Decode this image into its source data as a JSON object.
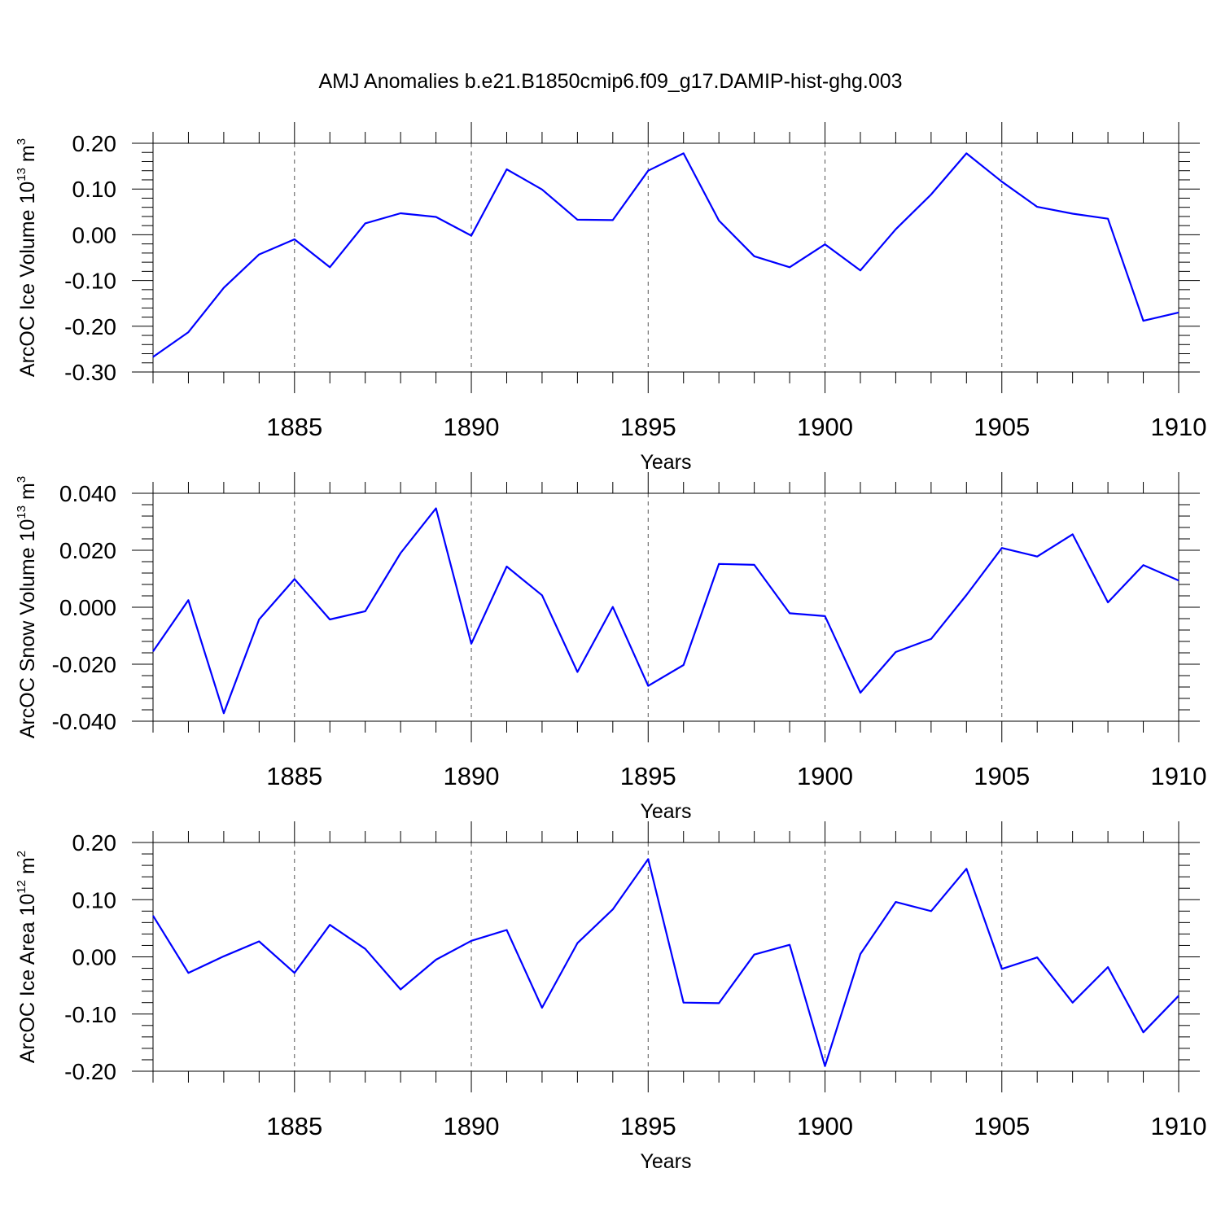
{
  "title": "AMJ Anomalies b.e21.B1850cmip6.f09_g17.DAMIP-hist-ghg.003",
  "chart_data": [
    {
      "type": "line",
      "ylabel": {
        "prefix": "ArcOC Ice Volume 10",
        "sup": "13",
        "suffix": " m",
        "sup2": "3"
      },
      "xlabel": "Years",
      "xlim": [
        1881,
        1910
      ],
      "ylim": [
        -0.3,
        0.2
      ],
      "yticks": [
        -0.3,
        -0.2,
        -0.1,
        0.0,
        0.1,
        0.2
      ],
      "ytick_labels": [
        "-0.30",
        "-0.20",
        "-0.10",
        "0.00",
        "0.10",
        "0.20"
      ],
      "xticks": [
        1885,
        1890,
        1895,
        1900,
        1905,
        1910
      ],
      "xtick_labels": [
        "1885",
        "1890",
        "1895",
        "1900",
        "1905",
        "1910"
      ],
      "grid": "vertical dashed at labeled years",
      "line_color": "#0000ff",
      "series": [
        {
          "x": [
            1881,
            1882,
            1883,
            1884,
            1885,
            1886,
            1887,
            1888,
            1889,
            1890,
            1891,
            1892,
            1893,
            1894,
            1895,
            1896,
            1897,
            1898,
            1899,
            1900,
            1901,
            1902,
            1903,
            1904,
            1905,
            1906,
            1907,
            1908,
            1909,
            1910
          ],
          "values": [
            -0.267,
            -0.213,
            -0.116,
            -0.043,
            -0.01,
            -0.071,
            0.025,
            0.047,
            0.039,
            -0.002,
            0.143,
            0.099,
            0.033,
            0.032,
            0.14,
            0.178,
            0.031,
            -0.047,
            -0.071,
            -0.021,
            -0.078,
            0.012,
            0.088,
            0.178,
            0.116,
            0.061,
            0.046,
            0.035,
            -0.188,
            -0.17
          ]
        }
      ]
    },
    {
      "type": "line",
      "ylabel": {
        "prefix": "ArcOC Snow Volume 10",
        "sup": "13",
        "suffix": " m",
        "sup2": "3"
      },
      "xlabel": "Years",
      "xlim": [
        1881,
        1910
      ],
      "ylim": [
        -0.04,
        0.04
      ],
      "yticks": [
        -0.04,
        -0.02,
        0.0,
        0.02,
        0.04
      ],
      "ytick_labels": [
        "-0.040",
        "-0.020",
        "0.000",
        "0.020",
        "0.040"
      ],
      "xticks": [
        1885,
        1890,
        1895,
        1900,
        1905,
        1910
      ],
      "xtick_labels": [
        "1885",
        "1890",
        "1895",
        "1900",
        "1905",
        "1910"
      ],
      "grid": "vertical dashed at labeled years",
      "line_color": "#0000ff",
      "series": [
        {
          "x": [
            1881,
            1882,
            1883,
            1884,
            1885,
            1886,
            1887,
            1888,
            1889,
            1890,
            1891,
            1892,
            1893,
            1894,
            1895,
            1896,
            1897,
            1898,
            1899,
            1900,
            1901,
            1902,
            1903,
            1904,
            1905,
            1906,
            1907,
            1908,
            1909,
            1910
          ],
          "values": [
            -0.0155,
            0.0025,
            -0.0372,
            -0.0043,
            0.0099,
            -0.0043,
            -0.0014,
            0.019,
            0.0347,
            -0.0128,
            0.0143,
            0.0042,
            -0.0227,
            0.0001,
            -0.0276,
            -0.0203,
            0.0152,
            0.0149,
            -0.0021,
            -0.0031,
            -0.03,
            -0.0157,
            -0.0111,
            0.0043,
            0.0208,
            0.0178,
            0.0256,
            0.0017,
            0.0148,
            0.0094
          ]
        }
      ]
    },
    {
      "type": "line",
      "ylabel": {
        "prefix": "ArcOC Ice Area 10",
        "sup": "12",
        "suffix": " m",
        "sup2": "2"
      },
      "xlabel": "Years",
      "xlim": [
        1881,
        1910
      ],
      "ylim": [
        -0.2,
        0.2
      ],
      "yticks": [
        -0.2,
        -0.1,
        0.0,
        0.1,
        0.2
      ],
      "ytick_labels": [
        "-0.20",
        "-0.10",
        "0.00",
        "0.10",
        "0.20"
      ],
      "xticks": [
        1885,
        1890,
        1895,
        1900,
        1905,
        1910
      ],
      "xtick_labels": [
        "1885",
        "1890",
        "1895",
        "1900",
        "1905",
        "1910"
      ],
      "grid": "vertical dashed at labeled years",
      "line_color": "#0000ff",
      "series": [
        {
          "x": [
            1881,
            1882,
            1883,
            1884,
            1885,
            1886,
            1887,
            1888,
            1889,
            1890,
            1891,
            1892,
            1893,
            1894,
            1895,
            1896,
            1897,
            1898,
            1899,
            1900,
            1901,
            1902,
            1903,
            1904,
            1905,
            1906,
            1907,
            1908,
            1909,
            1910
          ],
          "values": [
            0.072,
            -0.028,
            0.001,
            0.027,
            -0.028,
            0.056,
            0.014,
            -0.057,
            -0.005,
            0.028,
            0.047,
            -0.089,
            0.024,
            0.083,
            0.171,
            -0.08,
            -0.081,
            0.004,
            0.021,
            -0.191,
            0.005,
            0.096,
            0.08,
            0.154,
            -0.021,
            -0.001,
            -0.08,
            -0.018,
            -0.132,
            -0.068
          ]
        }
      ]
    }
  ]
}
